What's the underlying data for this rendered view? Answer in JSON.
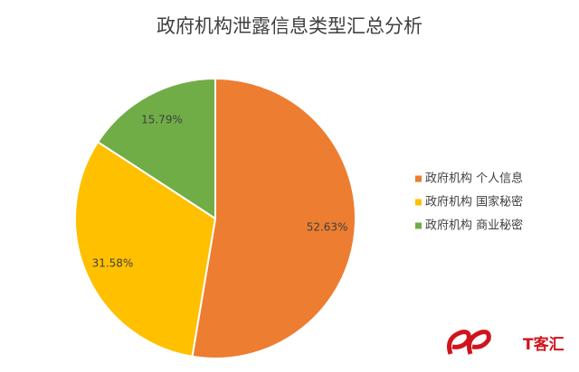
{
  "chart_data": {
    "type": "pie",
    "title": "政府机构泄露信息类型汇总分析",
    "categories": [
      "政府机构 个人信息",
      "政府机构 国家秘密",
      "政府机构 商业秘密"
    ],
    "values": [
      52.63,
      31.58,
      15.79
    ],
    "value_labels": [
      "52.63%",
      "31.58%",
      "15.79%"
    ],
    "colors": [
      "#ED7D31",
      "#FFC000",
      "#70AD47"
    ],
    "legend": "right"
  },
  "watermark": "T客汇"
}
